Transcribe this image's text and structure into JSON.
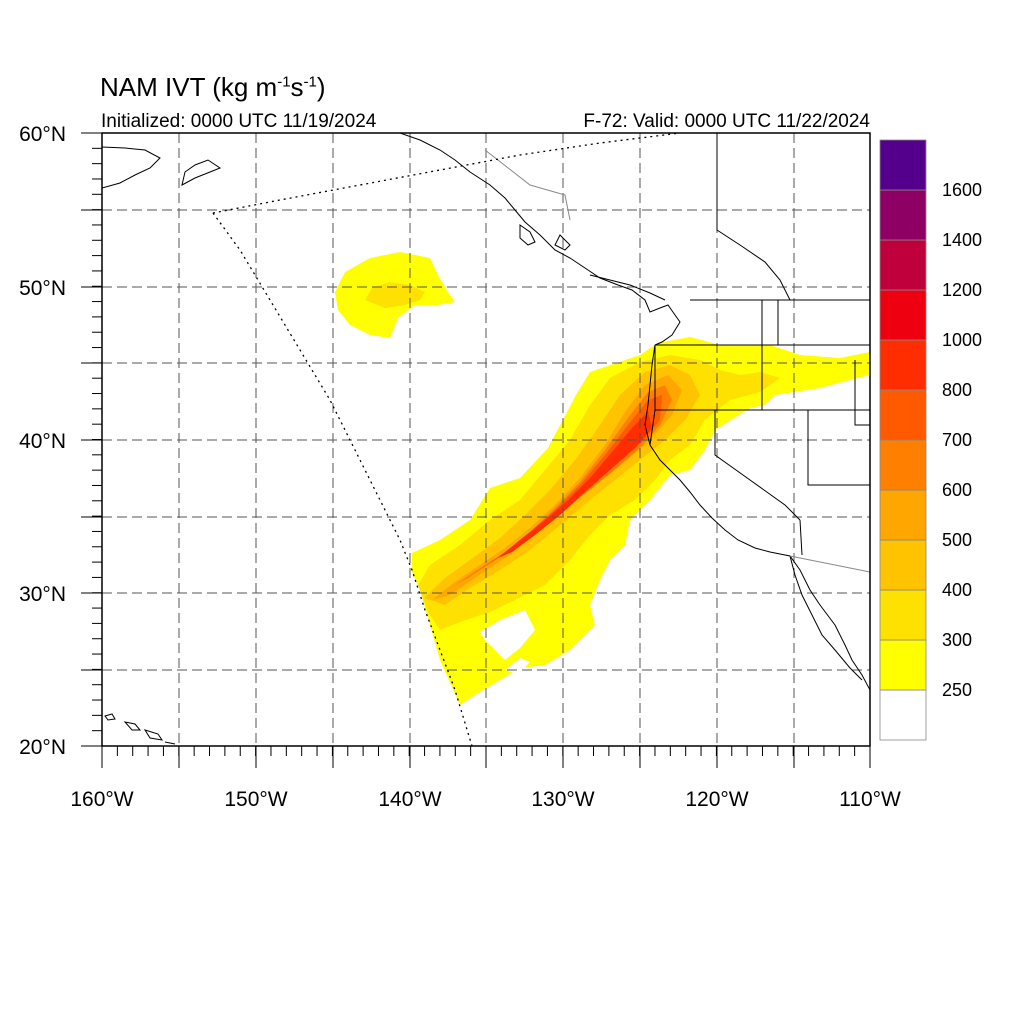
{
  "title": {
    "main": "NAM IVT (kg m",
    "exp1": "-1",
    "mid": "s",
    "exp2": "-1",
    "end": ")"
  },
  "initialized": "Initialized: 0000 UTC 11/19/2024",
  "valid": "F-72: Valid: 0000 UTC 11/22/2024",
  "axes": {
    "lon_labels": [
      "160°W",
      "150°W",
      "140°W",
      "130°W",
      "120°W",
      "110°W"
    ],
    "lat_labels": [
      "20°N",
      "30°N",
      "40°N",
      "50°N",
      "60°N"
    ],
    "lon_range": [
      -160,
      -110
    ],
    "lat_range": [
      20,
      60
    ],
    "grid": true
  },
  "colorbar": {
    "labels": [
      "250",
      "300",
      "400",
      "500",
      "600",
      "700",
      "800",
      "1000",
      "1200",
      "1400",
      "1600"
    ],
    "colors": [
      "#ffffff",
      "#ffff00",
      "#ffe100",
      "#ffc300",
      "#ffa600",
      "#ff8000",
      "#ff5a00",
      "#ff2d00",
      "#ee0010",
      "#c0003c",
      "#8e0064",
      "#55008c"
    ]
  }
}
